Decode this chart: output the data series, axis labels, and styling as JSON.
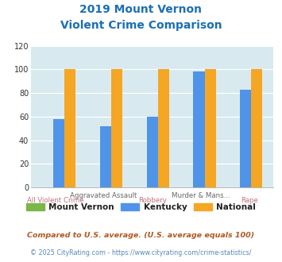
{
  "title_line1": "2019 Mount Vernon",
  "title_line2": "Violent Crime Comparison",
  "groups": [
    "All Violent Crime",
    "Aggravated Assault",
    "Robbery",
    "Murder & Mans...",
    "Rape"
  ],
  "mount_vernon": [
    0,
    0,
    0,
    0,
    0
  ],
  "kentucky": [
    58,
    52,
    60,
    98,
    83
  ],
  "national": [
    100,
    100,
    100,
    100,
    100
  ],
  "bar_color_mv": "#7ab648",
  "bar_color_ky": "#4f94e8",
  "bar_color_nat": "#f5a623",
  "ylim": [
    0,
    120
  ],
  "yticks": [
    0,
    20,
    40,
    60,
    80,
    100,
    120
  ],
  "title_color": "#1a6fb5",
  "plot_bg": "#d8eaf0",
  "legend_labels": [
    "Mount Vernon",
    "Kentucky",
    "National"
  ],
  "top_labels": [
    "",
    "Aggravated Assault",
    "",
    "Murder & Mans...",
    ""
  ],
  "bottom_labels": [
    "All Violent Crime",
    "",
    "Robbery",
    "",
    "Rape"
  ],
  "footnote1": "Compared to U.S. average. (U.S. average equals 100)",
  "footnote2": "© 2025 CityRating.com - https://www.cityrating.com/crime-statistics/",
  "footnote1_color": "#b05820",
  "footnote2_color": "#5588bb",
  "xlabel_top_color": "#666666",
  "xlabel_bot_color": "#c07080"
}
